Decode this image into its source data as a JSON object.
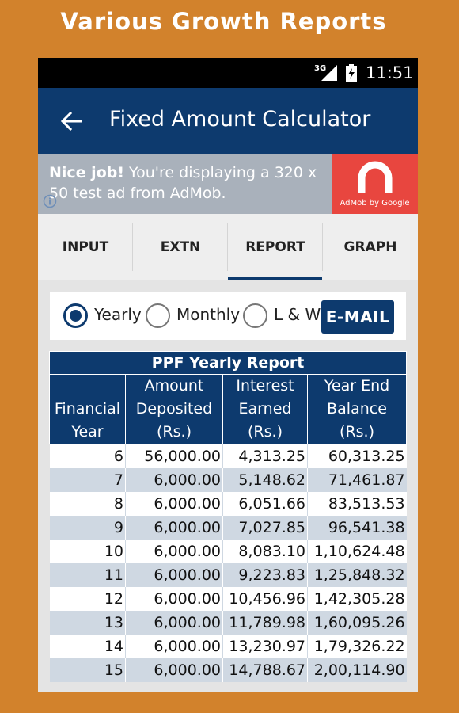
{
  "promo": {
    "title": "Various Growth Reports"
  },
  "status_bar": {
    "network": "3G",
    "time": "11:51"
  },
  "app_bar": {
    "title": "Fixed Amount Calculator",
    "back_icon": "arrow-left-icon"
  },
  "ad": {
    "headline": "Nice job!",
    "body": " You're displaying a 320 x 50 test ad from AdMob.",
    "brand": "AdMob by Google",
    "brand_color": "#e8463f"
  },
  "tabs": [
    {
      "label": "INPUT"
    },
    {
      "label": "EXTN"
    },
    {
      "label": "REPORT",
      "selected": true
    },
    {
      "label": "GRAPH"
    }
  ],
  "options": {
    "yearly": "Yearly",
    "monthly": "Monthly",
    "lw": "L & W",
    "selected": "Yearly",
    "email_button": "E-MAIL"
  },
  "report": {
    "caption": "PPF Yearly Report",
    "columns": [
      "Financial Year",
      "Amount Deposited (Rs.)",
      "Interest Earned (Rs.)",
      "Year End Balance (Rs.)"
    ],
    "rows": [
      [
        "6",
        "56,000.00",
        "4,313.25",
        "60,313.25"
      ],
      [
        "7",
        "6,000.00",
        "5,148.62",
        "71,461.87"
      ],
      [
        "8",
        "6,000.00",
        "6,051.66",
        "83,513.53"
      ],
      [
        "9",
        "6,000.00",
        "7,027.85",
        "96,541.38"
      ],
      [
        "10",
        "6,000.00",
        "8,083.10",
        "1,10,624.48"
      ],
      [
        "11",
        "6,000.00",
        "9,223.83",
        "1,25,848.32"
      ],
      [
        "12",
        "6,000.00",
        "10,456.96",
        "1,42,305.28"
      ],
      [
        "13",
        "6,000.00",
        "11,789.98",
        "1,60,095.26"
      ],
      [
        "14",
        "6,000.00",
        "13,230.97",
        "1,79,326.22"
      ],
      [
        "15",
        "6,000.00",
        "14,788.67",
        "2,00,114.90"
      ]
    ]
  },
  "colors": {
    "primary": "#0d3a6e",
    "background": "#d2822c",
    "row_alt": "#cfd8e2"
  }
}
